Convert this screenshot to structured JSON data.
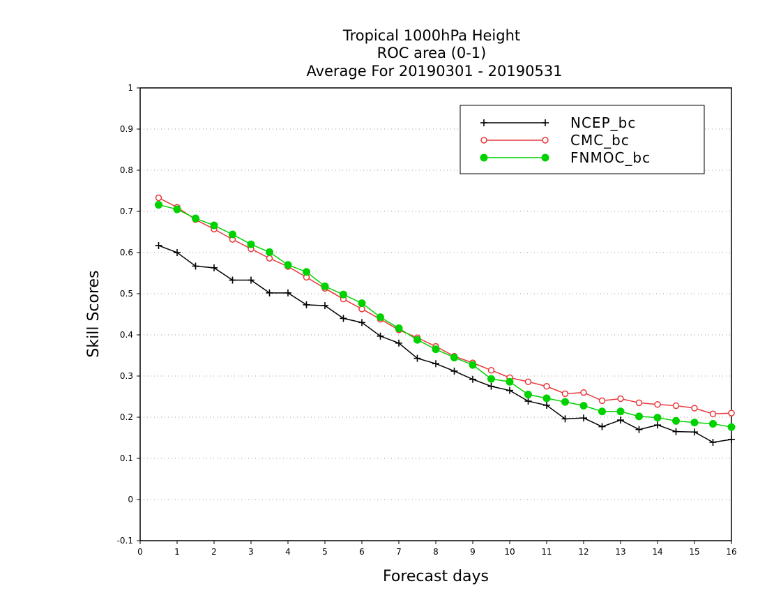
{
  "chart_data": {
    "type": "line",
    "title": [
      "Tropical 1000hPa Height",
      "ROC area (0-1)",
      "Average For 20190301 - 20190531"
    ],
    "xlabel": "Forecast days",
    "ylabel": "Skill Scores",
    "xlim": [
      0,
      16
    ],
    "ylim": [
      -0.1,
      1
    ],
    "xticks": [
      0,
      1,
      2,
      3,
      4,
      5,
      6,
      7,
      8,
      9,
      10,
      11,
      12,
      13,
      14,
      15,
      16
    ],
    "yticks": [
      -0.1,
      0,
      0.1,
      0.2,
      0.3,
      0.4,
      0.5,
      0.6,
      0.7,
      0.8,
      0.9,
      1
    ],
    "ytick_labels": [
      "-0.1",
      "0",
      "0.1",
      "0.2",
      "0.3",
      "0.4",
      "0.5",
      "0.6",
      "0.7",
      "0.8",
      "0.9",
      "1"
    ],
    "grid": "horizontal dotted",
    "legend_position": "top-right",
    "x": [
      0.5,
      1,
      1.5,
      2,
      2.5,
      3,
      3.5,
      4,
      4.5,
      5,
      5.5,
      6,
      6.5,
      7,
      7.5,
      8,
      8.5,
      9,
      9.5,
      10,
      10.5,
      11,
      11.5,
      12,
      12.5,
      13,
      13.5,
      14,
      14.5,
      15,
      15.5,
      16
    ],
    "series": [
      {
        "name": "NCEP_bc",
        "color": "#000000",
        "marker": "plus",
        "values": [
          0.617,
          0.6,
          0.567,
          0.563,
          0.533,
          0.533,
          0.502,
          0.502,
          0.473,
          0.471,
          0.44,
          0.43,
          0.397,
          0.38,
          0.343,
          0.33,
          0.312,
          0.292,
          0.275,
          0.265,
          0.239,
          0.229,
          0.196,
          0.198,
          0.177,
          0.193,
          0.17,
          0.181,
          0.165,
          0.164,
          0.139,
          0.146
        ]
      },
      {
        "name": "CMC_bc",
        "color": "#e8383c",
        "marker": "open-circle",
        "values": [
          0.733,
          0.71,
          0.68,
          0.657,
          0.632,
          0.609,
          0.586,
          0.566,
          0.54,
          0.513,
          0.487,
          0.463,
          0.438,
          0.412,
          0.393,
          0.372,
          0.348,
          0.332,
          0.314,
          0.296,
          0.286,
          0.275,
          0.257,
          0.26,
          0.24,
          0.245,
          0.235,
          0.231,
          0.228,
          0.222,
          0.208,
          0.21
        ]
      },
      {
        "name": "FNMOC_bc",
        "color": "#00d200",
        "marker": "filled-circle",
        "values": [
          0.716,
          0.705,
          0.683,
          0.666,
          0.644,
          0.62,
          0.601,
          0.57,
          0.553,
          0.518,
          0.498,
          0.477,
          0.443,
          0.416,
          0.388,
          0.365,
          0.345,
          0.327,
          0.293,
          0.286,
          0.255,
          0.246,
          0.237,
          0.228,
          0.214,
          0.214,
          0.202,
          0.199,
          0.191,
          0.187,
          0.184,
          0.176
        ]
      }
    ]
  }
}
